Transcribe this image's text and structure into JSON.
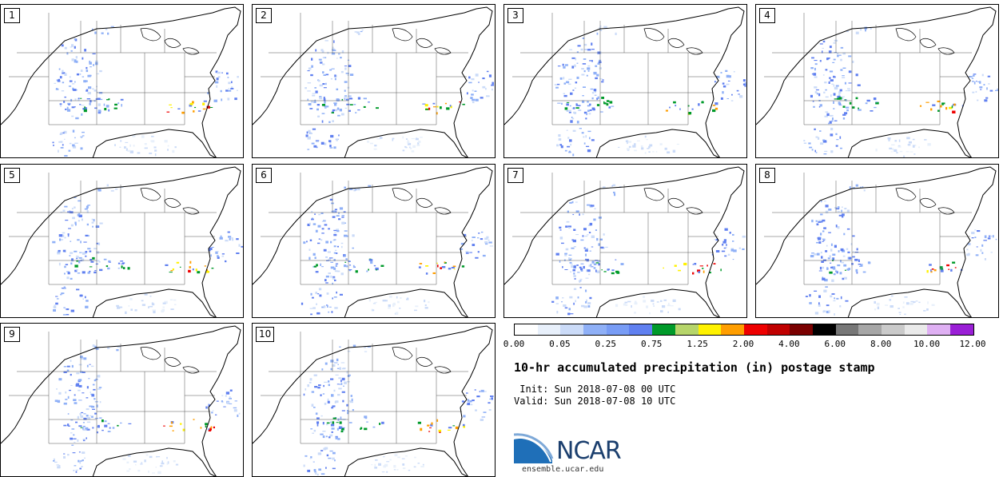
{
  "stamps": [
    {
      "label": "1"
    },
    {
      "label": "2"
    },
    {
      "label": "3"
    },
    {
      "label": "4"
    },
    {
      "label": "5"
    },
    {
      "label": "6"
    },
    {
      "label": "7"
    },
    {
      "label": "8"
    },
    {
      "label": "9"
    },
    {
      "label": "10"
    }
  ],
  "colorbar": {
    "colors": [
      "#ffffff",
      "#e8f0fb",
      "#cbdbf8",
      "#8fb0f7",
      "#789cf5",
      "#6080f0",
      "#009a2a",
      "#b6d56a",
      "#fff200",
      "#ff9e00",
      "#ee0000",
      "#c00000",
      "#7a0000",
      "#000000",
      "#777777",
      "#a6a6a6",
      "#cacaca",
      "#eaeaea",
      "#dfb0f3",
      "#9a1fd6"
    ],
    "tick_labels": [
      "0.00",
      "0.05",
      "0.25",
      "0.75",
      "1.25",
      "2.00",
      "4.00",
      "6.00",
      "8.00",
      "10.00",
      "12.00"
    ]
  },
  "title": "10-hr accumulated precipitation (in) postage stamp",
  "init_text": " Init: Sun 2018-07-08 00 UTC",
  "valid_text": "Valid: Sun 2018-07-08 10 UTC",
  "logo": {
    "name": "NCAR",
    "url": "ensemble.ucar.edu"
  }
}
